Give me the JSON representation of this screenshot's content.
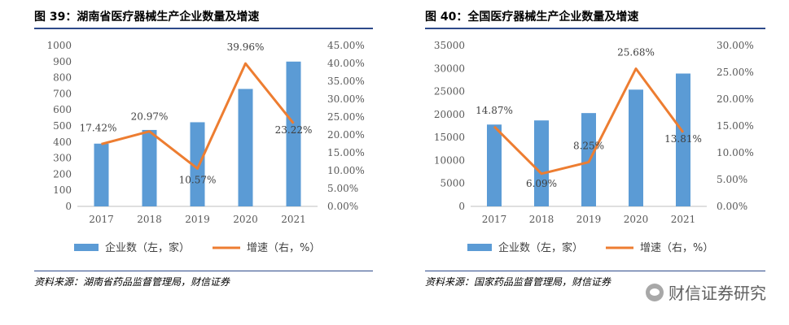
{
  "figures": [
    {
      "title": "图 39：湖南省医疗器械生产企业数量及增速",
      "source": "资料来源：湖南省药品监督管理局，财信证券"
    },
    {
      "title": "图 40：全国医疗器械生产企业数量及增速",
      "source": "资料来源：国家药品监督管理局，财信证券"
    }
  ],
  "watermark": "财信证券研究",
  "chart_data": [
    {
      "type": "bar",
      "categories": [
        "2017",
        "2018",
        "2019",
        "2020",
        "2021"
      ],
      "series": [
        {
          "name": "企业数（左，家）",
          "type": "bar",
          "axis": "left",
          "color": "#5b9bd5",
          "values": [
            390,
            475,
            523,
            730,
            900
          ]
        },
        {
          "name": "增速（右，%）",
          "type": "line",
          "axis": "right",
          "color": "#ed7d31",
          "values": [
            17.42,
            20.97,
            10.57,
            39.96,
            23.22
          ]
        }
      ],
      "data_labels": [
        "17.42%",
        "20.97%",
        "10.57%",
        "39.96%",
        "23.22%"
      ],
      "left_axis": {
        "min": 0,
        "max": 1000,
        "step": 100,
        "ticks": [
          "0",
          "100",
          "200",
          "300",
          "400",
          "500",
          "600",
          "700",
          "800",
          "900",
          "1000"
        ]
      },
      "right_axis": {
        "min": 0,
        "max": 45,
        "step": 5,
        "ticks": [
          "0.00%",
          "5.00%",
          "10.00%",
          "15.00%",
          "20.00%",
          "25.00%",
          "30.00%",
          "35.00%",
          "40.00%",
          "45.00%"
        ]
      },
      "legend": [
        "企业数（左，家）",
        "增速（右，%）"
      ],
      "legend_position": "bottom",
      "grid": false
    },
    {
      "type": "bar",
      "categories": [
        "2017",
        "2018",
        "2019",
        "2020",
        "2021"
      ],
      "series": [
        {
          "name": "企业数（左，家）",
          "type": "bar",
          "axis": "left",
          "color": "#5b9bd5",
          "values": [
            17800,
            18700,
            20300,
            25400,
            28900
          ]
        },
        {
          "name": "增速（右，%）",
          "type": "line",
          "axis": "right",
          "color": "#ed7d31",
          "values": [
            14.87,
            6.09,
            8.25,
            25.68,
            13.81
          ]
        }
      ],
      "data_labels": [
        "14.87%",
        "6.09%",
        "8.25%",
        "25.68%",
        "13.81%"
      ],
      "left_axis": {
        "min": 0,
        "max": 35000,
        "step": 5000,
        "ticks": [
          "0",
          "5000",
          "10000",
          "15000",
          "20000",
          "25000",
          "30000",
          "35000"
        ]
      },
      "right_axis": {
        "min": 0,
        "max": 30,
        "step": 5,
        "ticks": [
          "0.00%",
          "5.00%",
          "10.00%",
          "15.00%",
          "20.00%",
          "25.00%",
          "30.00%"
        ]
      },
      "legend": [
        "企业数（左，家）",
        "增速（右，%）"
      ],
      "legend_position": "bottom",
      "grid": false
    }
  ]
}
